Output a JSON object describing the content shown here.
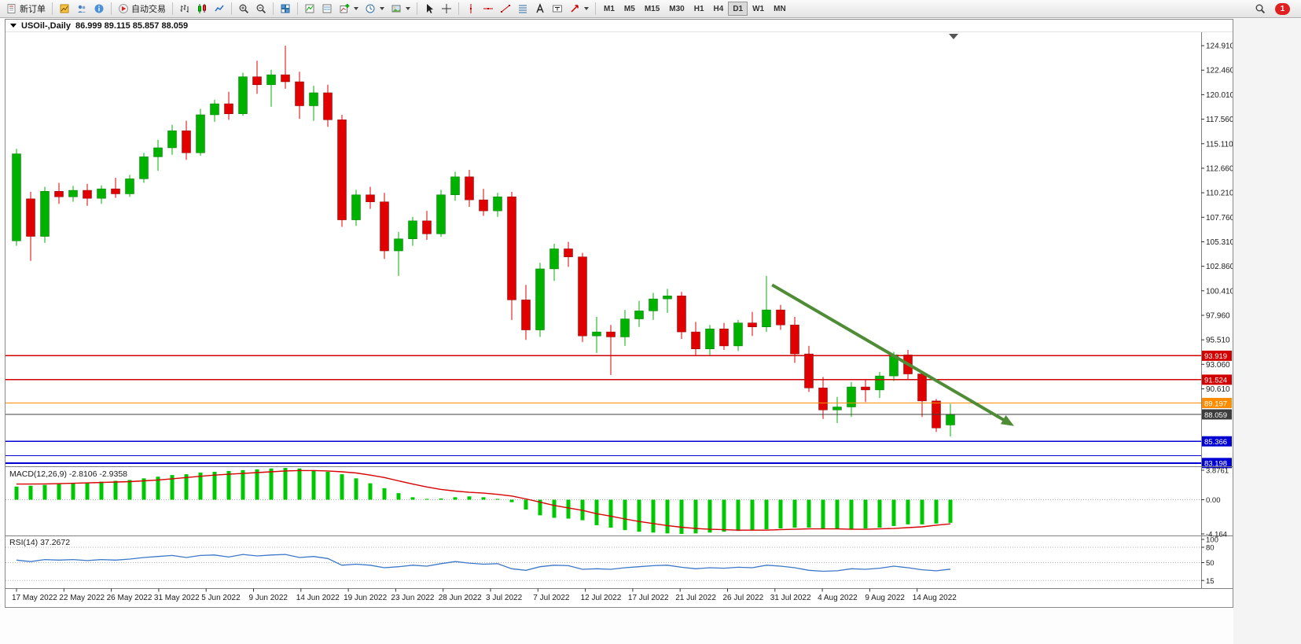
{
  "toolbar": {
    "groups": [
      [
        {
          "name": "new-order",
          "label": "新订单"
        }
      ],
      [
        {
          "name": "market-watch"
        },
        {
          "name": "community"
        },
        {
          "name": "help-info"
        }
      ],
      [
        {
          "name": "autotrade",
          "label": "自动交易"
        }
      ],
      [
        {
          "name": "bars-chart"
        },
        {
          "name": "candles-chart"
        },
        {
          "name": "line-chart"
        }
      ],
      [
        {
          "name": "zoom-in"
        },
        {
          "name": "zoom-out"
        }
      ],
      [
        {
          "name": "tile-windows"
        }
      ],
      [
        {
          "name": "data-window"
        },
        {
          "name": "navigator"
        },
        {
          "name": "new-chart",
          "dropdown": true
        },
        {
          "name": "periods",
          "dropdown": true
        },
        {
          "name": "templates",
          "dropdown": true
        }
      ],
      [
        {
          "name": "cursor"
        },
        {
          "name": "crosshair"
        }
      ],
      [
        {
          "name": "vertical-line"
        },
        {
          "name": "horizontal-line"
        },
        {
          "name": "trendline"
        },
        {
          "name": "fibonacci"
        },
        {
          "name": "text"
        },
        {
          "name": "text-label"
        },
        {
          "name": "arrows",
          "dropdown": true
        }
      ]
    ],
    "timeframes": [
      "M1",
      "M5",
      "M15",
      "M30",
      "H1",
      "H4",
      "D1",
      "W1",
      "MN"
    ],
    "active_timeframe": "D1",
    "notification_count": "1"
  },
  "chart": {
    "title": "USOil-,Daily",
    "ohlc": "86.999 89.115 85.857 88.059"
  },
  "chart_data": {
    "type": "candlestick",
    "symbol": "USOil-",
    "timeframe": "Daily",
    "last_bar": {
      "open": 86.999,
      "high": 89.115,
      "low": 85.857,
      "close": 88.059
    },
    "ylim": [
      82.87,
      126.25
    ],
    "up_color": "#00b200",
    "down_color": "#e00000",
    "y_axis_labels": [
      "124.910",
      "122.460",
      "120.010",
      "117.560",
      "115.110",
      "112.660",
      "110.210",
      "107.760",
      "105.310",
      "102.860",
      "100.410",
      "97.960",
      "95.510",
      "93.060",
      "90.610"
    ],
    "x_axis_labels": [
      "17 May 2022",
      "22 May 2022",
      "26 May 2022",
      "31 May 2022",
      "5 Jun 2022",
      "9 Jun 2022",
      "14 Jun 2022",
      "19 Jun 2022",
      "23 Jun 2022",
      "28 Jun 2022",
      "3 Jul 2022",
      "7 Jul 2022",
      "12 Jul 2022",
      "17 Jul 2022",
      "21 Jul 2022",
      "26 Jul 2022",
      "31 Jul 2022",
      "4 Aug 2022",
      "9 Aug 2022",
      "14 Aug 2022"
    ],
    "candles": [
      [
        105.4,
        114.6,
        104.9,
        114.1
      ],
      [
        109.6,
        110.3,
        103.4,
        105.85
      ],
      [
        105.85,
        110.8,
        105.2,
        110.35
      ],
      [
        110.35,
        111.2,
        109.1,
        109.8
      ],
      [
        109.8,
        110.9,
        109.3,
        110.45
      ],
      [
        110.45,
        111.1,
        108.9,
        109.65
      ],
      [
        109.65,
        110.95,
        109.1,
        110.6
      ],
      [
        110.6,
        111.7,
        109.7,
        110.1
      ],
      [
        110.1,
        112.0,
        109.8,
        111.6
      ],
      [
        111.6,
        114.2,
        111.2,
        113.8
      ],
      [
        113.8,
        115.5,
        112.4,
        114.7
      ],
      [
        114.7,
        117.0,
        114.0,
        116.4
      ],
      [
        116.4,
        117.4,
        113.5,
        114.2
      ],
      [
        114.2,
        118.6,
        113.9,
        118.0
      ],
      [
        118.0,
        119.5,
        117.3,
        119.1
      ],
      [
        119.1,
        120.3,
        117.5,
        118.1
      ],
      [
        118.1,
        122.2,
        117.9,
        121.8
      ],
      [
        121.8,
        123.4,
        120.1,
        121.0
      ],
      [
        121.0,
        122.5,
        118.8,
        122.0
      ],
      [
        122.0,
        124.9,
        120.6,
        121.3
      ],
      [
        121.3,
        122.3,
        117.6,
        118.9
      ],
      [
        118.9,
        120.9,
        117.4,
        120.2
      ],
      [
        120.2,
        121.0,
        116.8,
        117.5
      ],
      [
        117.5,
        118.0,
        106.8,
        107.5
      ],
      [
        107.5,
        110.5,
        106.9,
        110.0
      ],
      [
        110.0,
        110.8,
        108.6,
        109.3
      ],
      [
        109.3,
        110.2,
        103.6,
        104.4
      ],
      [
        104.4,
        106.3,
        101.9,
        105.6
      ],
      [
        105.6,
        107.8,
        104.9,
        107.4
      ],
      [
        107.4,
        108.4,
        105.5,
        106.1
      ],
      [
        106.1,
        110.5,
        105.8,
        110.0
      ],
      [
        110.0,
        112.3,
        109.4,
        111.8
      ],
      [
        111.8,
        112.5,
        108.8,
        109.5
      ],
      [
        109.5,
        110.6,
        107.9,
        108.4
      ],
      [
        108.4,
        110.2,
        107.8,
        109.8
      ],
      [
        109.8,
        110.3,
        97.5,
        99.5
      ],
      [
        99.5,
        101.0,
        95.5,
        96.5
      ],
      [
        96.5,
        103.2,
        95.8,
        102.6
      ],
      [
        102.6,
        105.1,
        101.4,
        104.6
      ],
      [
        104.6,
        105.3,
        102.8,
        103.8
      ],
      [
        103.8,
        104.2,
        95.3,
        95.9
      ],
      [
        95.9,
        97.8,
        94.2,
        96.3
      ],
      [
        96.3,
        97.0,
        92.0,
        95.8
      ],
      [
        95.8,
        98.5,
        94.9,
        97.6
      ],
      [
        97.6,
        99.4,
        96.8,
        98.4
      ],
      [
        98.4,
        100.2,
        97.5,
        99.6
      ],
      [
        99.6,
        100.6,
        98.2,
        99.9
      ],
      [
        99.9,
        100.3,
        95.6,
        96.3
      ],
      [
        96.3,
        97.3,
        93.9,
        94.6
      ],
      [
        94.6,
        97.0,
        94.0,
        96.6
      ],
      [
        96.6,
        97.2,
        94.5,
        94.9
      ],
      [
        94.9,
        97.5,
        94.4,
        97.2
      ],
      [
        97.2,
        98.3,
        95.9,
        96.8
      ],
      [
        96.8,
        101.9,
        96.3,
        98.5
      ],
      [
        98.5,
        99.0,
        96.5,
        97.0
      ],
      [
        97.0,
        97.8,
        93.2,
        94.1
      ],
      [
        94.1,
        94.9,
        90.3,
        90.7
      ],
      [
        90.7,
        91.8,
        87.6,
        88.5
      ],
      [
        88.5,
        89.8,
        87.2,
        88.8
      ],
      [
        88.8,
        91.3,
        87.8,
        90.8
      ],
      [
        90.8,
        91.6,
        89.3,
        90.5
      ],
      [
        90.5,
        92.3,
        89.7,
        91.9
      ],
      [
        91.9,
        94.3,
        91.4,
        94.0
      ],
      [
        94.0,
        94.5,
        91.5,
        92.1
      ],
      [
        92.1,
        92.4,
        87.8,
        89.4
      ],
      [
        89.4,
        89.6,
        86.3,
        86.7
      ],
      [
        86.999,
        89.115,
        85.857,
        88.059
      ]
    ],
    "levels": [
      {
        "value": 93.919,
        "color": "#d20000",
        "width": 1.4,
        "label": "93.919"
      },
      {
        "value": 91.524,
        "color": "#d20000",
        "width": 1.4,
        "label": "91.524"
      },
      {
        "value": 89.197,
        "color": "#ff8c00",
        "width": 1.4,
        "label": "89.197"
      },
      {
        "value": 88.059,
        "color": "#3c3c3c",
        "width": 1.0,
        "label": "88.059"
      },
      {
        "value": 85.366,
        "color": "#0000d2",
        "width": 1.6,
        "label": "85.366"
      },
      {
        "value": 83.93,
        "color": "#0000d2",
        "width": 1.4,
        "label": null
      },
      {
        "value": 83.198,
        "color": "#0000d2",
        "width": 2.0,
        "label": "83.198"
      }
    ],
    "arrow": {
      "from_bar": 53.4,
      "from_price": 101.0,
      "to_bar": 70.5,
      "to_price": 86.9,
      "color": "#4e8d36"
    },
    "macd": {
      "label": "MACD(12,26,9) -2.8106 -2.9358",
      "main_value": -2.8106,
      "signal_value": -2.9358,
      "ylim": [
        -4.164,
        3.8761
      ],
      "scale_labels": [
        "3.8761",
        "0.00",
        "-4.164"
      ],
      "hist_color": "#00c800",
      "signal_color": "#d80000",
      "hist": [
        1.6,
        1.7,
        1.8,
        1.9,
        2.0,
        2.1,
        2.2,
        2.3,
        2.4,
        2.6,
        2.8,
        3.0,
        3.1,
        3.3,
        3.4,
        3.5,
        3.6,
        3.7,
        3.8,
        3.87,
        3.8,
        3.6,
        3.4,
        3.1,
        2.6,
        2.0,
        1.4,
        0.8,
        0.3,
        0.1,
        0.15,
        0.3,
        0.4,
        0.3,
        0.1,
        -0.3,
        -1.2,
        -1.9,
        -2.2,
        -2.3,
        -2.5,
        -3.1,
        -3.4,
        -3.7,
        -3.9,
        -4.0,
        -4.1,
        -4.16,
        -4.1,
        -4.0,
        -3.9,
        -3.8,
        -3.7,
        -3.6,
        -3.5,
        -3.4,
        -3.4,
        -3.5,
        -3.6,
        -3.6,
        -3.5,
        -3.4,
        -3.2,
        -3.0,
        -3.0,
        -2.9,
        -2.81
      ],
      "signal": [
        1.9,
        1.9,
        1.92,
        1.95,
        2.0,
        2.05,
        2.1,
        2.15,
        2.2,
        2.3,
        2.4,
        2.55,
        2.7,
        2.85,
        3.0,
        3.1,
        3.2,
        3.3,
        3.4,
        3.5,
        3.55,
        3.55,
        3.5,
        3.4,
        3.25,
        3.0,
        2.7,
        2.3,
        1.9,
        1.55,
        1.25,
        1.05,
        0.9,
        0.8,
        0.65,
        0.45,
        0.1,
        -0.3,
        -0.7,
        -1.0,
        -1.3,
        -1.7,
        -2.0,
        -2.35,
        -2.65,
        -2.9,
        -3.15,
        -3.35,
        -3.5,
        -3.6,
        -3.65,
        -3.7,
        -3.7,
        -3.7,
        -3.65,
        -3.6,
        -3.55,
        -3.55,
        -3.55,
        -3.6,
        -3.6,
        -3.55,
        -3.5,
        -3.4,
        -3.3,
        -3.1,
        -2.94
      ]
    },
    "rsi": {
      "label": "RSI(14) 37.2672",
      "value": 37.2672,
      "ylim": [
        0,
        100
      ],
      "scale_labels": [
        "100",
        "80",
        "50",
        "15"
      ],
      "level_lines": [
        80,
        50,
        15
      ],
      "line_color": "#3c78c8",
      "values": [
        55,
        52,
        56,
        55,
        56,
        54,
        56,
        55,
        57,
        60,
        62,
        64,
        60,
        64,
        65,
        61,
        66,
        63,
        65,
        66,
        60,
        62,
        58,
        45,
        47,
        45,
        40,
        42,
        45,
        43,
        48,
        52,
        49,
        47,
        48,
        38,
        35,
        42,
        45,
        44,
        37,
        38,
        37,
        40,
        42,
        44,
        45,
        41,
        38,
        40,
        39,
        41,
        40,
        45,
        43,
        40,
        35,
        33,
        34,
        38,
        37,
        39,
        43,
        40,
        36,
        34,
        37.27
      ]
    }
  }
}
